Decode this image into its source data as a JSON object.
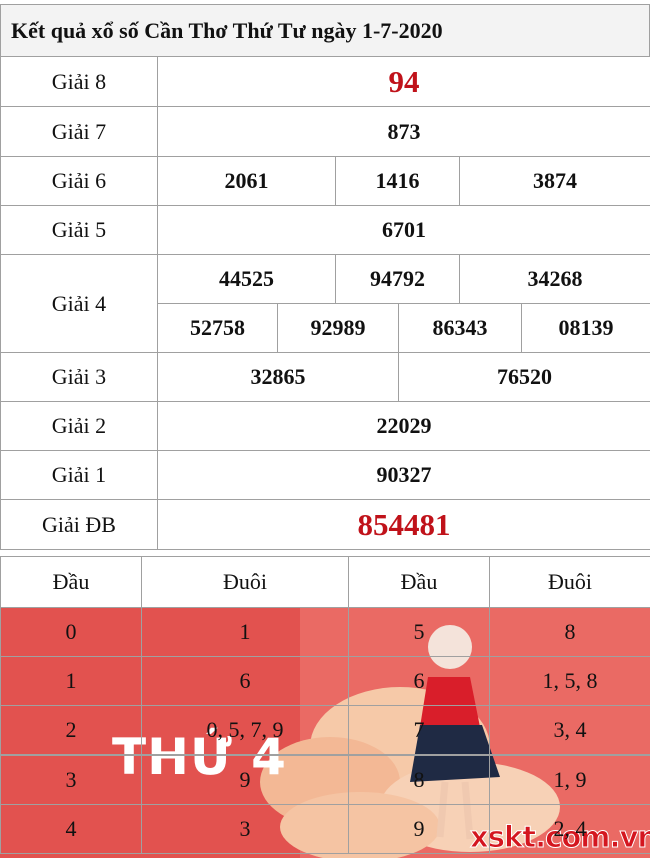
{
  "title": "Kết quả xổ số Cần Thơ Thứ Tư ngày 1-7-2020",
  "prizes": [
    {
      "label": "Giải 8",
      "numbers": [
        "94"
      ]
    },
    {
      "label": "Giải 7",
      "numbers": [
        "873"
      ]
    },
    {
      "label": "Giải 6",
      "numbers": [
        "2061",
        "1416",
        "3874"
      ]
    },
    {
      "label": "Giải 5",
      "numbers": [
        "6701"
      ]
    },
    {
      "label": "Giải 4",
      "numbers": [
        "44525",
        "94792",
        "34268",
        "52758",
        "92989",
        "86343",
        "08139"
      ]
    },
    {
      "label": "Giải 3",
      "numbers": [
        "32865",
        "76520"
      ]
    },
    {
      "label": "Giải 2",
      "numbers": [
        "22029"
      ]
    },
    {
      "label": "Giải 1",
      "numbers": [
        "90327"
      ]
    },
    {
      "label": "Giải ĐB",
      "numbers": [
        "854481"
      ]
    }
  ],
  "loto": {
    "headers": [
      "Đầu",
      "Đuôi",
      "Đầu",
      "Đuôi"
    ],
    "rows": [
      [
        "0",
        "1",
        "5",
        "8"
      ],
      [
        "1",
        "6",
        "6",
        "1, 5, 8"
      ],
      [
        "2",
        "0, 5, 7, 9",
        "7",
        "3, 4"
      ],
      [
        "3",
        "9",
        "8",
        "1, 9"
      ],
      [
        "4",
        "3",
        "9",
        "2, 4"
      ]
    ]
  },
  "banner": {
    "text": "THỨ 4",
    "site": "xskt.com.vn"
  }
}
